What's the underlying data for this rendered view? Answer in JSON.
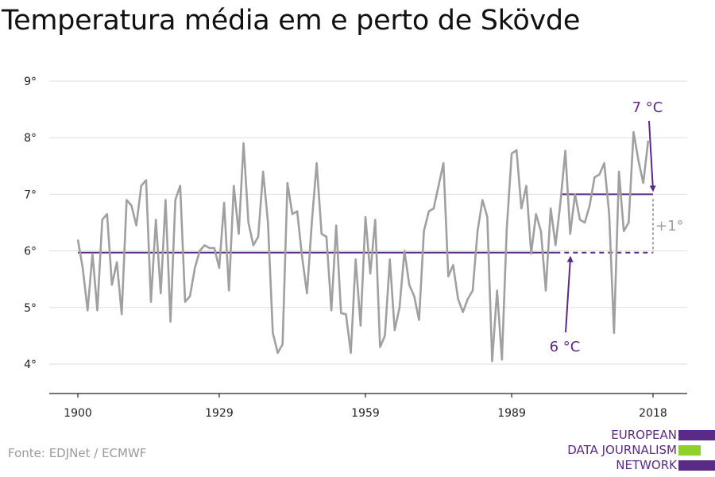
{
  "title": "Temperatura média em e perto de Skövde",
  "source": "Fonte: EDJNet / ECMWF",
  "logo": {
    "lines": [
      "EUROPEAN",
      "DATA JOURNALISM",
      "NETWORK"
    ]
  },
  "colors": {
    "series": "#a0a0a0",
    "accent": "#5b2a86",
    "diff": "#a0a0a0",
    "logo_green": "#8fd12b",
    "grid": "#dddddd"
  },
  "chart_data": {
    "type": "line",
    "title": "Temperatura média em e perto de Skövde",
    "xlabel": "",
    "ylabel": "",
    "xlim": [
      1900,
      2018
    ],
    "ylim": [
      4,
      9
    ],
    "x_ticks": [
      1900,
      1929,
      1959,
      1989,
      2018
    ],
    "y_ticks": [
      {
        "value": 4,
        "label": "4°"
      },
      {
        "value": 5,
        "label": "5°"
      },
      {
        "value": 6,
        "label": "6°"
      },
      {
        "value": 7,
        "label": "7°"
      },
      {
        "value": 8,
        "label": "8°"
      },
      {
        "value": 9,
        "label": "9°"
      }
    ],
    "grid": true,
    "series": [
      {
        "x_start": 1900,
        "values": [
          6.2,
          5.7,
          4.95,
          5.95,
          4.95,
          6.55,
          6.65,
          5.4,
          5.8,
          4.88,
          6.9,
          6.8,
          6.45,
          7.15,
          7.25,
          5.1,
          6.55,
          5.25,
          6.9,
          4.75,
          6.9,
          7.15,
          5.1,
          5.2,
          5.7,
          6.0,
          6.1,
          6.05,
          6.05,
          5.7,
          6.85,
          5.3,
          7.15,
          6.3,
          7.9,
          6.5,
          6.1,
          6.25,
          7.4,
          6.5,
          4.55,
          4.2,
          4.35,
          7.2,
          6.65,
          6.7,
          5.9,
          5.25,
          6.5,
          7.55,
          6.3,
          6.25,
          4.95,
          6.45,
          4.9,
          4.88,
          4.2,
          5.85,
          4.68,
          6.6,
          5.6,
          6.55,
          4.3,
          4.5,
          5.85,
          4.6,
          5.0,
          6.0,
          5.4,
          5.2,
          4.78,
          6.35,
          6.7,
          6.75,
          7.15,
          7.55,
          5.55,
          5.75,
          5.15,
          4.92,
          5.15,
          5.3,
          6.35,
          6.9,
          6.6,
          4.05,
          5.3,
          4.08,
          6.4,
          7.72,
          7.78,
          6.75,
          7.15,
          5.95,
          6.65,
          6.35,
          5.3,
          6.75,
          6.1,
          6.85,
          7.77,
          6.3,
          7.0,
          6.55,
          6.5,
          6.8,
          7.3,
          7.35,
          7.55,
          6.65,
          4.55,
          7.4,
          6.35,
          6.5,
          8.1,
          7.6,
          7.2,
          7.95
        ]
      }
    ],
    "reference_lines": [
      {
        "label": "6 °C",
        "value": 5.97,
        "from": 1900,
        "to": 2018,
        "solid_until": 1998
      },
      {
        "label": "7 °C",
        "value": 7.0,
        "from": 1999,
        "to": 2018
      }
    ],
    "annotations": {
      "diff_label": "+1°",
      "label_low": "6 °C",
      "label_high": "7 °C"
    }
  }
}
